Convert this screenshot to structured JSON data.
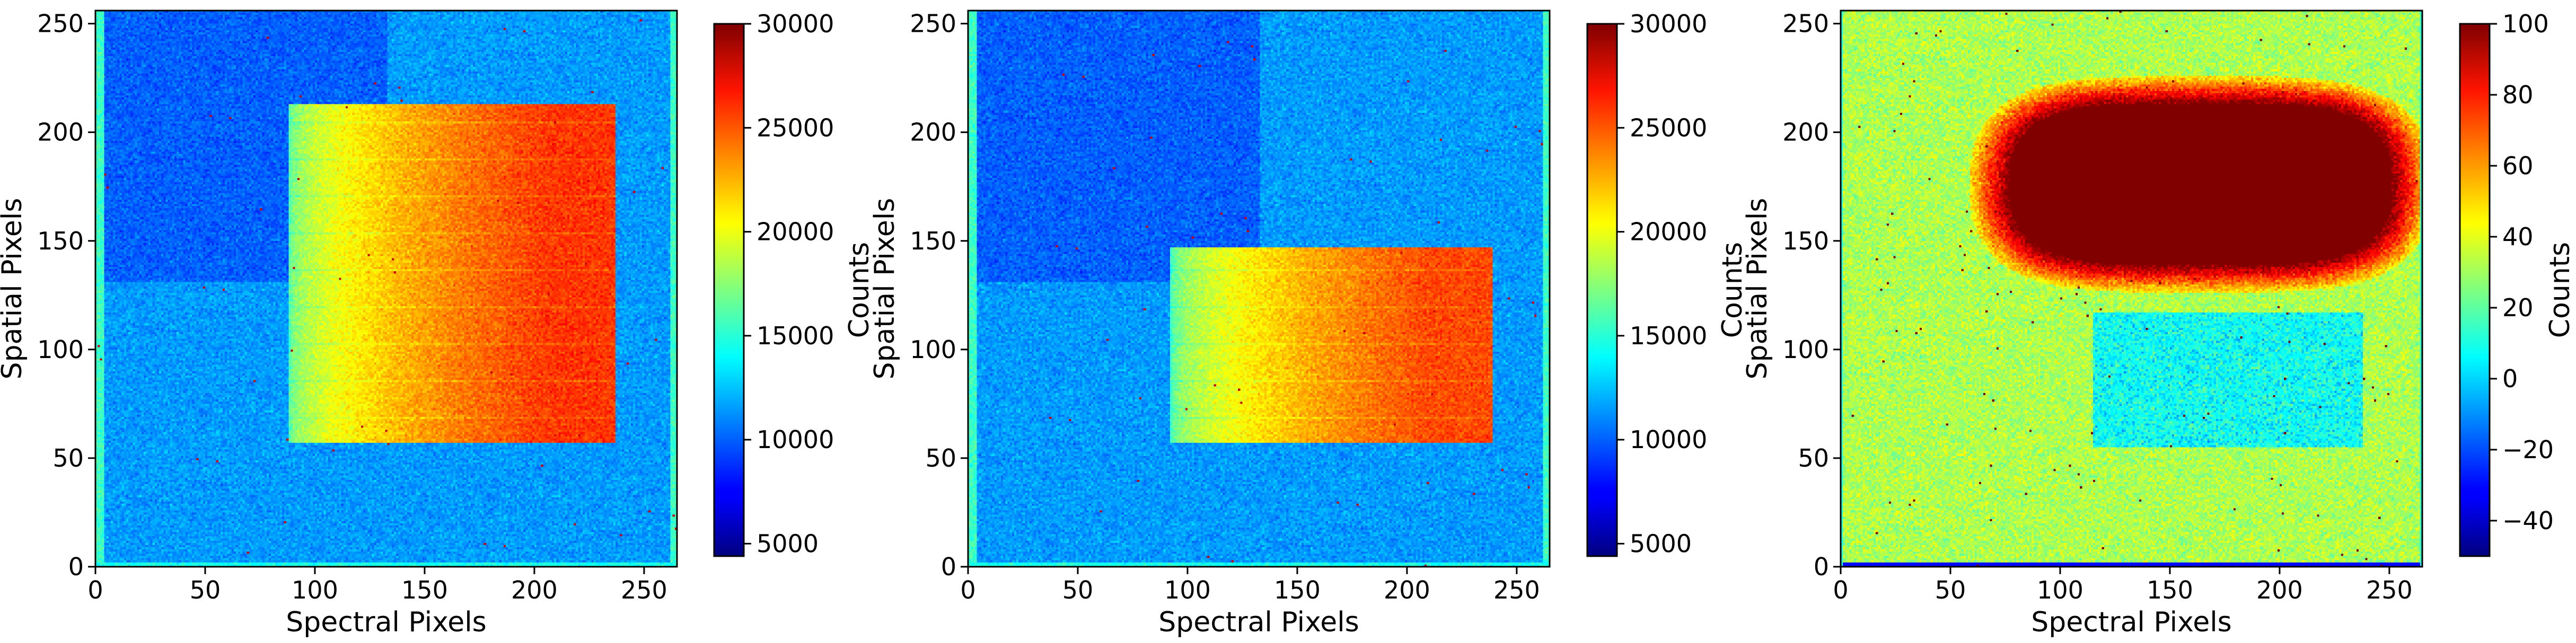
{
  "chart_data": [
    {
      "type": "heatmap",
      "xlabel": "Spectral Pixels",
      "ylabel": "Spatial Pixels",
      "xlim": [
        0,
        265
      ],
      "ylim": [
        0,
        256
      ],
      "xticks": [
        0,
        50,
        100,
        150,
        200,
        250
      ],
      "yticks": [
        0,
        50,
        100,
        150,
        200,
        250
      ],
      "colormap": "jet",
      "colorbar": {
        "label": "Counts",
        "min": 4400,
        "max": 30000,
        "ticks": [
          5000,
          10000,
          15000,
          20000,
          25000,
          30000
        ]
      },
      "background_counts": 11500,
      "features": [
        {
          "kind": "bright-region",
          "x": [
            88,
            237
          ],
          "y": [
            57,
            213
          ],
          "counts_left": 16000,
          "counts_right": 25500
        },
        {
          "kind": "darker-quadrant",
          "x": [
            0,
            133
          ],
          "y": [
            131,
            256
          ],
          "counts_offset": -1500
        },
        {
          "kind": "edge-columns",
          "x": [
            [
              0,
              4
            ],
            [
              262,
              265
            ]
          ],
          "counts": 15500
        }
      ]
    },
    {
      "type": "heatmap",
      "xlabel": "Spectral Pixels",
      "ylabel": "Spatial Pixels",
      "xlim": [
        0,
        265
      ],
      "ylim": [
        0,
        256
      ],
      "xticks": [
        0,
        50,
        100,
        150,
        200,
        250
      ],
      "yticks": [
        0,
        50,
        100,
        150,
        200,
        250
      ],
      "colormap": "jet",
      "colorbar": {
        "label": "Counts",
        "min": 4400,
        "max": 30000,
        "ticks": [
          5000,
          10000,
          15000,
          20000,
          25000,
          30000
        ]
      },
      "background_counts": 11500,
      "features": [
        {
          "kind": "bright-region",
          "x": [
            92,
            239
          ],
          "y": [
            57,
            147
          ],
          "counts_left": 15500,
          "counts_right": 25000
        },
        {
          "kind": "darker-quadrant",
          "x": [
            0,
            133
          ],
          "y": [
            131,
            256
          ],
          "counts_offset": -1500
        },
        {
          "kind": "edge-columns",
          "x": [
            [
              0,
              4
            ],
            [
              262,
              265
            ]
          ],
          "counts": 15500
        }
      ]
    },
    {
      "type": "heatmap",
      "xlabel": "Spectral Pixels",
      "ylabel": "Spatial Pixels",
      "xlim": [
        0,
        265
      ],
      "ylim": [
        0,
        256
      ],
      "xticks": [
        0,
        50,
        100,
        150,
        200,
        250
      ],
      "yticks": [
        0,
        50,
        100,
        150,
        200,
        250
      ],
      "colormap": "jet",
      "colorbar": {
        "label": "Counts",
        "min": -50,
        "max": 100,
        "ticks": [
          -40,
          -20,
          0,
          20,
          40,
          60,
          80,
          100
        ]
      },
      "background_counts": 32,
      "features": [
        {
          "kind": "saturated-blob",
          "x": [
            76,
            251
          ],
          "y": [
            138,
            213
          ],
          "counts": 100
        },
        {
          "kind": "deficit-region",
          "x": [
            115,
            238
          ],
          "y": [
            55,
            117
          ],
          "counts": 8
        }
      ]
    }
  ]
}
